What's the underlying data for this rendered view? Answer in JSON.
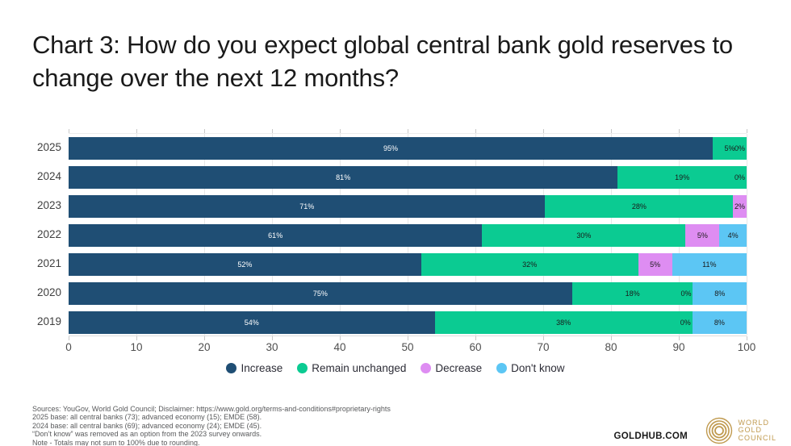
{
  "title": "Chart 3: How do you expect global central bank gold reserves to change over the next 12 months?",
  "chart_data": {
    "type": "bar",
    "orientation": "horizontal-stacked",
    "title": "Chart 3: How do you expect global central bank gold reserves to change over the next 12 months?",
    "categories": [
      "2025",
      "2024",
      "2023",
      "2022",
      "2021",
      "2020",
      "2019"
    ],
    "series": [
      {
        "name": "Increase",
        "color": "#1f4e74",
        "label_color": "#ffffff",
        "values": [
          95,
          81,
          71,
          61,
          52,
          75,
          54
        ]
      },
      {
        "name": "Remain unchanged",
        "color": "#0bcb92",
        "label_color": "#1a1a1a",
        "values": [
          5,
          19,
          28,
          30,
          32,
          18,
          38
        ]
      },
      {
        "name": "Decrease",
        "color": "#de8df2",
        "label_color": "#1a1a1a",
        "values": [
          0,
          0,
          2,
          5,
          5,
          0,
          0
        ]
      },
      {
        "name": "Don't know",
        "color": "#5cc6f4",
        "label_color": "#1a1a1a",
        "values": [
          null,
          null,
          null,
          4,
          11,
          8,
          8
        ]
      }
    ],
    "xticks": [
      0,
      10,
      20,
      30,
      40,
      50,
      60,
      70,
      80,
      90,
      100
    ],
    "xlim": [
      0,
      100
    ],
    "value_suffix": "%",
    "grid": true,
    "legend_position": "bottom"
  },
  "footer": {
    "lines": [
      "Sources: YouGov, World Gold Council; Disclaimer: https://www.gold.org/terms-and-conditions#proprietary-rights",
      "2025 base: all central banks (73); advanced economy (15); EMDE (58).",
      "2024 base: all central banks (69); advanced economy (24); EMDE (45).",
      "“Don’t know” was removed as an option from the 2023 survey onwards.",
      "Note - Totals may not sum to 100% due to rounding."
    ]
  },
  "brand": {
    "goldhub": "GOLDHUB.COM",
    "logo_lines": [
      "WORLD",
      "GOLD",
      "COUNCIL"
    ],
    "gold_color": "#c09a4f"
  }
}
